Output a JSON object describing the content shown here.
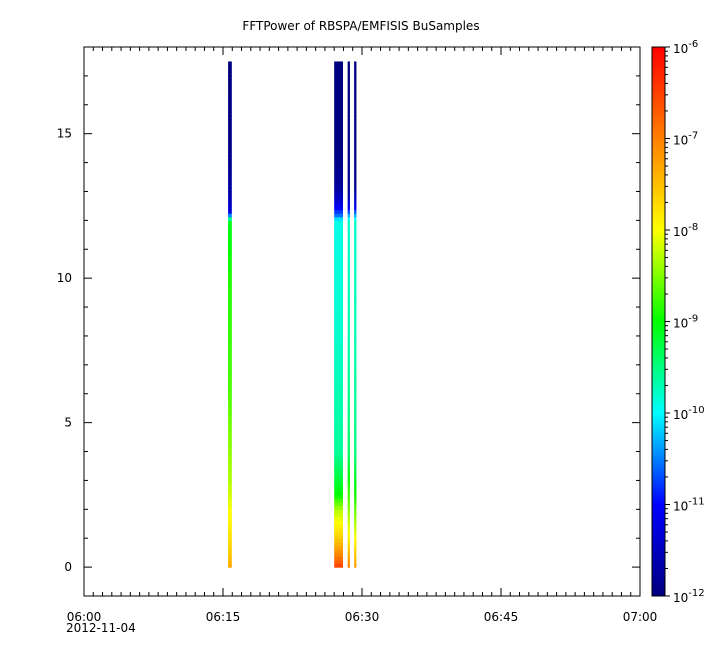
{
  "chart_data": {
    "type": "heatmap",
    "title": "FFTPower of RBSPA/EMFISIS  BuSamples",
    "xlabel": "",
    "ylabel": "",
    "x_axis": {
      "type": "time",
      "range": [
        "06:00",
        "07:00"
      ],
      "tick_labels": [
        "06:00",
        "06:15",
        "06:30",
        "06:45",
        "07:00"
      ],
      "tick_values_min": [
        0,
        15,
        30,
        45,
        60
      ],
      "date_label": "2012-11-04",
      "minor_tick_interval_min": 1
    },
    "y_axis": {
      "range": [
        -1,
        18
      ],
      "tick_values": [
        0,
        5,
        10,
        15
      ],
      "tick_labels": [
        "0",
        "5",
        "10",
        "15"
      ]
    },
    "colorbar": {
      "scale": "log",
      "range": [
        1e-12,
        1e-06
      ],
      "tick_labels": [
        {
          "base": "10",
          "exp": "-12",
          "value": 1e-12
        },
        {
          "base": "10",
          "exp": "-11",
          "value": 1e-11
        },
        {
          "base": "10",
          "exp": "-10",
          "value": 1e-10
        },
        {
          "base": "10",
          "exp": "-9",
          "value": 1e-09
        },
        {
          "base": "10",
          "exp": "-8",
          "value": 1e-08
        },
        {
          "base": "10",
          "exp": "-7",
          "value": 1e-07
        },
        {
          "base": "10",
          "exp": "-6",
          "value": 1e-06
        }
      ],
      "colors": [
        "#00007f",
        "#0000ff",
        "#00ffff",
        "#00ff00",
        "#ffff00",
        "#ff7f00",
        "#ff0000"
      ]
    },
    "y_extent": [
      0,
      17.5
    ],
    "strips": [
      {
        "t_start_min": 15.55,
        "t_end_min": 15.95,
        "profile": [
          [
            0,
            -7.3
          ],
          [
            0.5,
            -7.6
          ],
          [
            1.5,
            -7.9
          ],
          [
            3,
            -8.3
          ],
          [
            6,
            -8.7
          ],
          [
            10,
            -8.9
          ],
          [
            12,
            -9.1
          ],
          [
            12.3,
            -11.3
          ],
          [
            13,
            -11.7
          ],
          [
            14,
            -11.9
          ],
          [
            17.5,
            -12
          ]
        ]
      },
      {
        "t_start_min": 27.0,
        "t_end_min": 27.95,
        "profile": [
          [
            0,
            -6.5
          ],
          [
            0.4,
            -7.0
          ],
          [
            1.0,
            -7.6
          ],
          [
            2.0,
            -8.3
          ],
          [
            2.5,
            -9.0
          ],
          [
            4,
            -9.6
          ],
          [
            8,
            -9.8
          ],
          [
            12,
            -9.9
          ],
          [
            12.2,
            -10.6
          ],
          [
            12.6,
            -11.3
          ],
          [
            13.2,
            -11.8
          ],
          [
            14.5,
            -12
          ],
          [
            17.5,
            -12
          ]
        ]
      },
      {
        "t_start_min": 28.45,
        "t_end_min": 28.7,
        "profile": [
          [
            0,
            -7.0
          ],
          [
            1,
            -7.9
          ],
          [
            2.5,
            -8.7
          ],
          [
            4,
            -9.4
          ],
          [
            8,
            -9.7
          ],
          [
            12,
            -9.8
          ],
          [
            12.4,
            -11
          ],
          [
            13,
            -11.8
          ],
          [
            17.5,
            -12
          ]
        ]
      },
      {
        "t_start_min": 29.15,
        "t_end_min": 29.4,
        "profile": [
          [
            0,
            -7.2
          ],
          [
            1,
            -8.0
          ],
          [
            2.5,
            -8.9
          ],
          [
            4,
            -9.5
          ],
          [
            8,
            -9.7
          ],
          [
            12,
            -9.8
          ],
          [
            12.5,
            -11.2
          ],
          [
            13.2,
            -11.9
          ],
          [
            17.5,
            -12
          ]
        ]
      }
    ]
  }
}
